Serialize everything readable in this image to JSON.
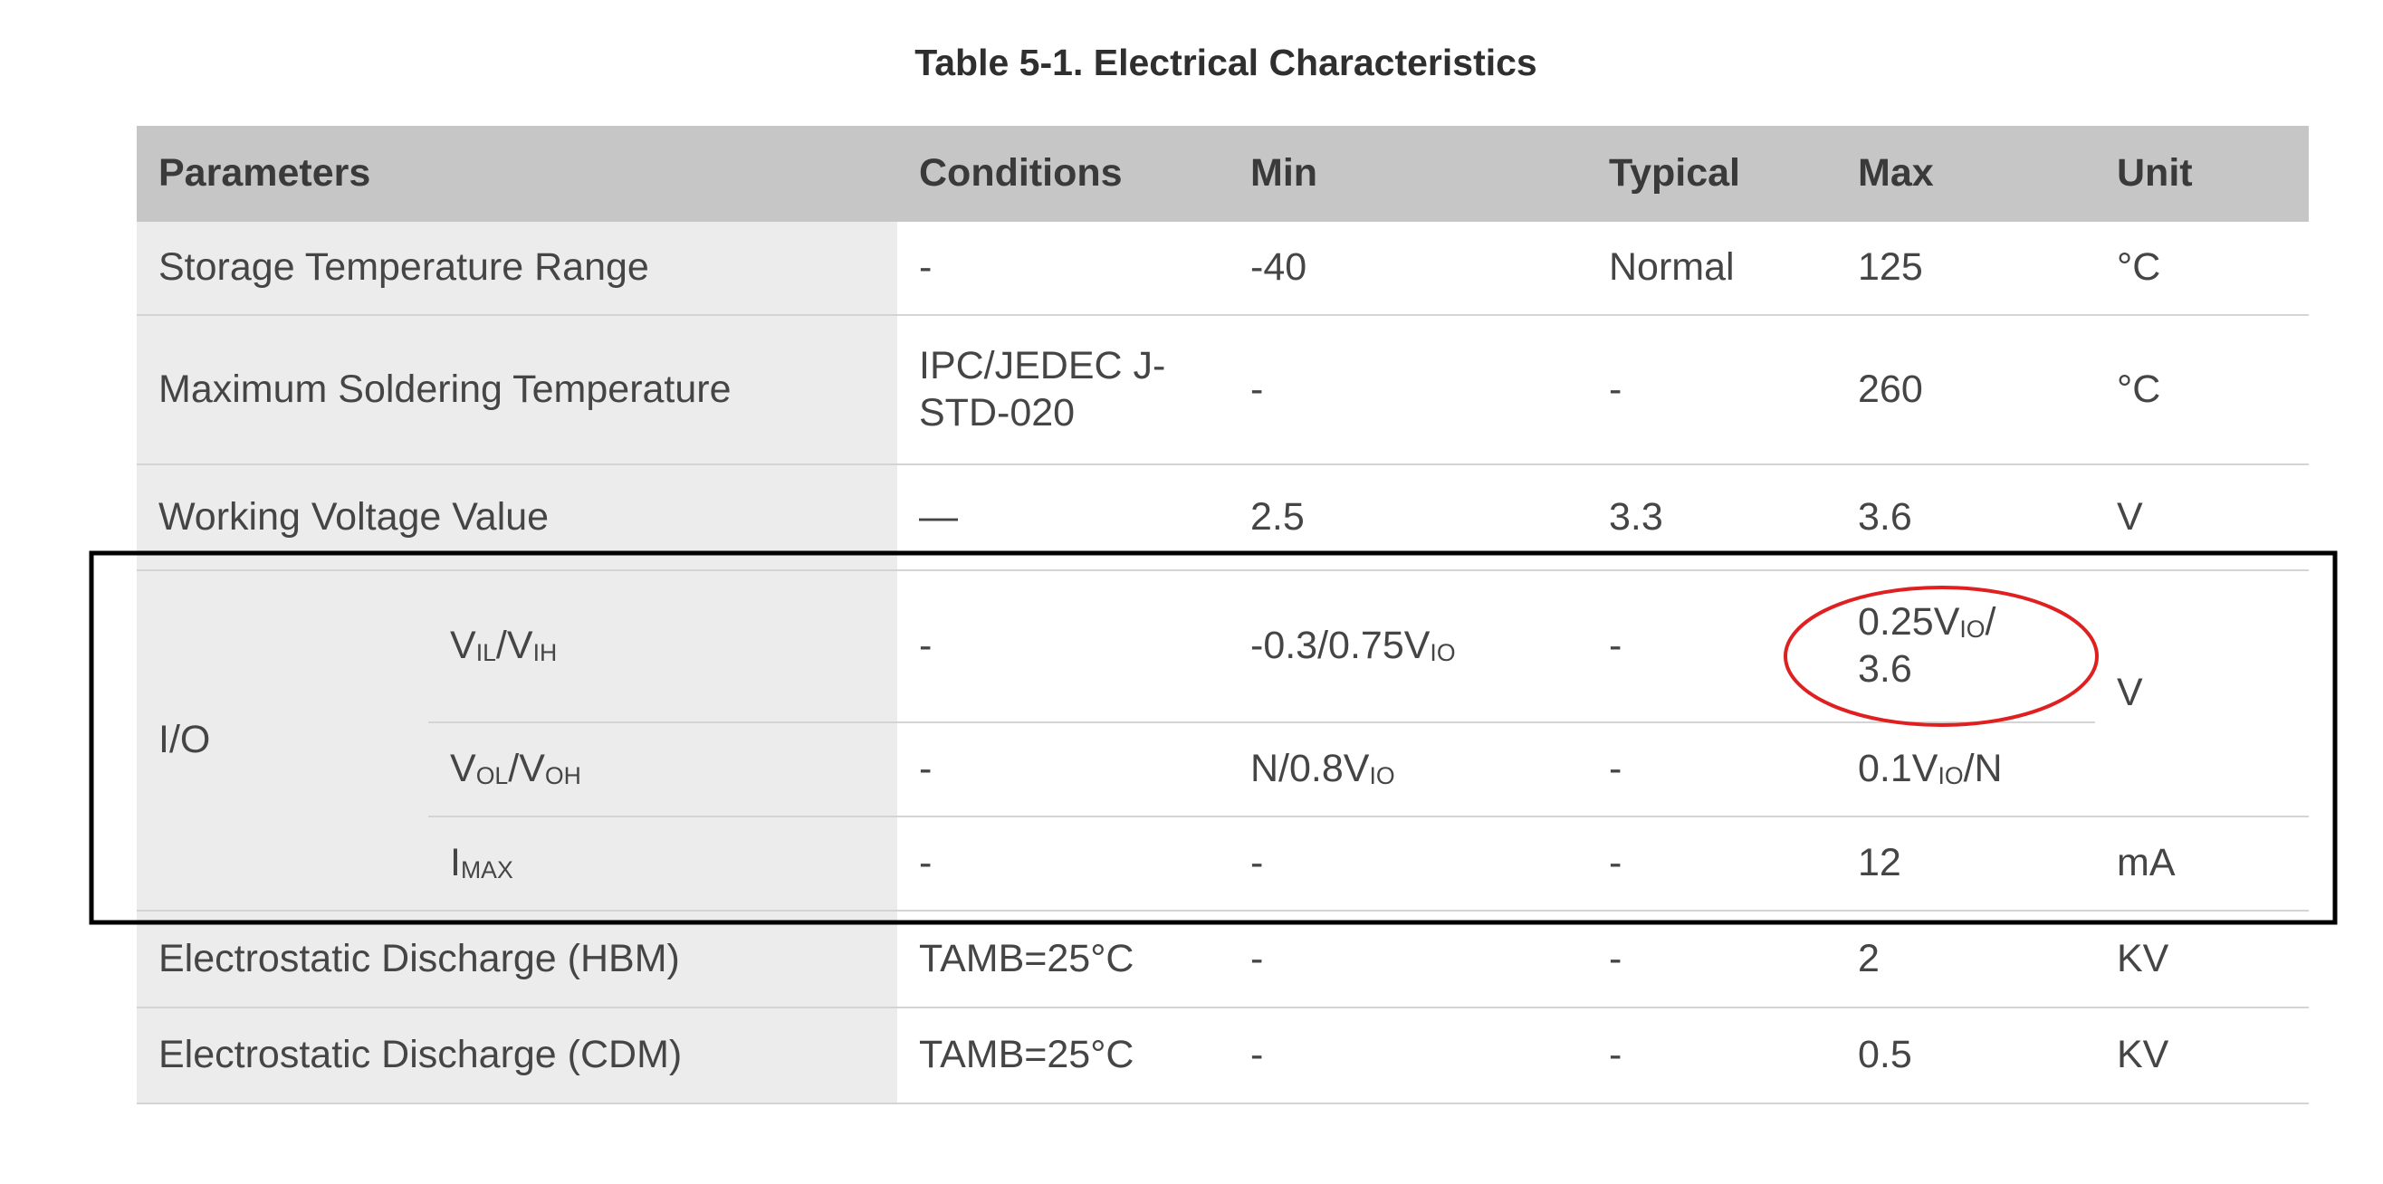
{
  "title": "Table 5-1. Electrical Characteristics",
  "header": [
    "Parameters",
    "Conditions",
    "Min",
    "Typical",
    "Max",
    "Unit"
  ],
  "rows_top": [
    [
      "Storage Temperature Range",
      "-",
      "-40",
      "Normal",
      "125",
      "°C"
    ],
    [
      "Maximum Soldering Temperature",
      "IPC/JEDEC J-\nSTD-020",
      "-",
      "-",
      "260",
      "°C"
    ],
    [
      "Working Voltage Value",
      "—",
      "2.5",
      "3.3",
      "3.6",
      "V"
    ]
  ],
  "io": {
    "label": "I/O",
    "rows": [
      [
        [
          "V",
          "IL",
          "/V",
          "IH"
        ],
        "-",
        [
          "-0.3/0.75V",
          "IO"
        ],
        "-",
        [
          "0.25V",
          "IO",
          "/\n3.6"
        ],
        "V"
      ],
      [
        [
          "V",
          "OL",
          "/V",
          "OH"
        ],
        "-",
        [
          "N/0.8V",
          "IO"
        ],
        "-",
        [
          "0.1V",
          "IO",
          "/N"
        ],
        null
      ],
      [
        [
          "I",
          "MAX"
        ],
        "-",
        "-",
        "-",
        "12",
        "mA"
      ]
    ]
  },
  "rows_bottom": [
    [
      "Electrostatic Discharge (HBM)",
      "TAMB=25°C",
      "-",
      "-",
      "2",
      "KV"
    ],
    [
      "Electrostatic Discharge (CDM)",
      "TAMB=25°C",
      "-",
      "-",
      "0.5",
      "KV"
    ]
  ]
}
